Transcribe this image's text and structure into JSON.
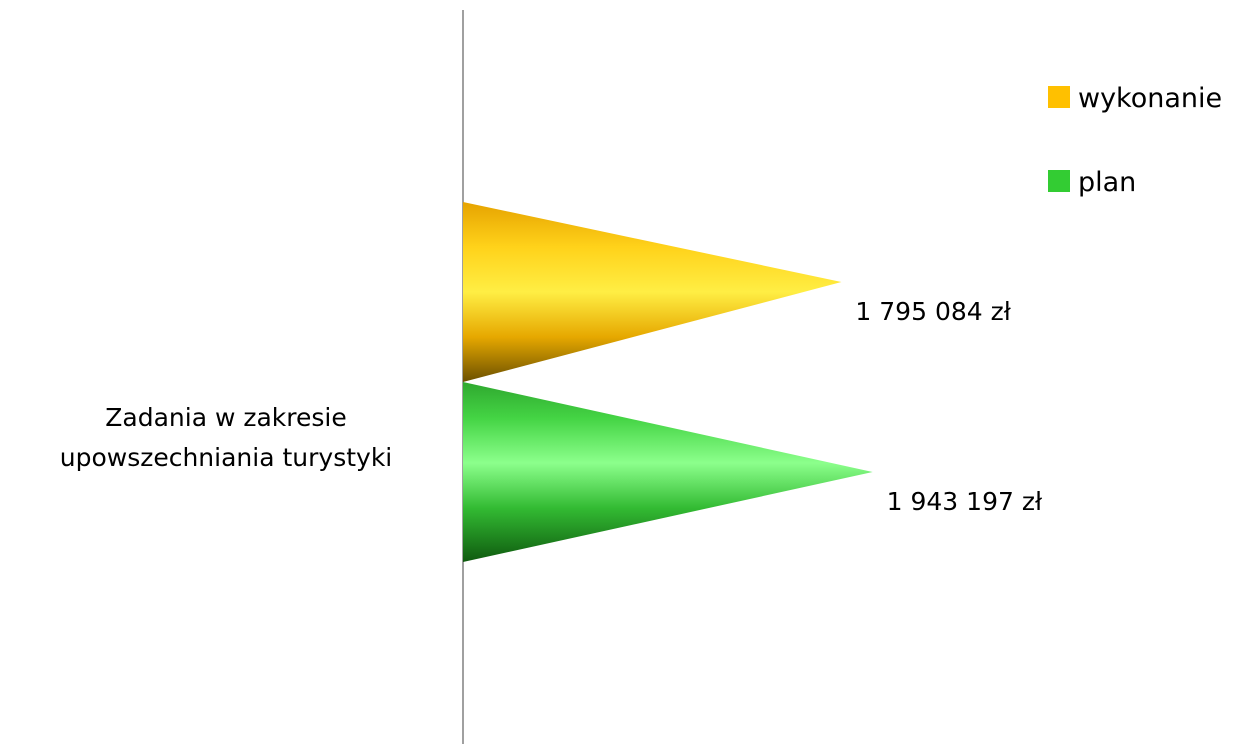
{
  "chart_data": {
    "type": "bar",
    "orientation": "horizontal",
    "bar_shape": "cone",
    "categories": [
      "Zadania w zakresie upowszechniania turystyki"
    ],
    "category_label_lines": [
      "Zadania w zakresie",
      "upowszechniania turystyki"
    ],
    "series": [
      {
        "name": "plan",
        "values": [
          1943197
        ],
        "value_labels": [
          "1 943 197 zł"
        ],
        "color": "#33cc33"
      },
      {
        "name": "wykonanie",
        "values": [
          1795084
        ],
        "value_labels": [
          "1 795 084 zł"
        ],
        "color": "#ffc000"
      }
    ],
    "xlim": [
      0,
      3700000
    ],
    "title": "",
    "xlabel": "",
    "ylabel": "",
    "grid": false,
    "legend_position": "top-right",
    "axis_color": "#808080"
  }
}
